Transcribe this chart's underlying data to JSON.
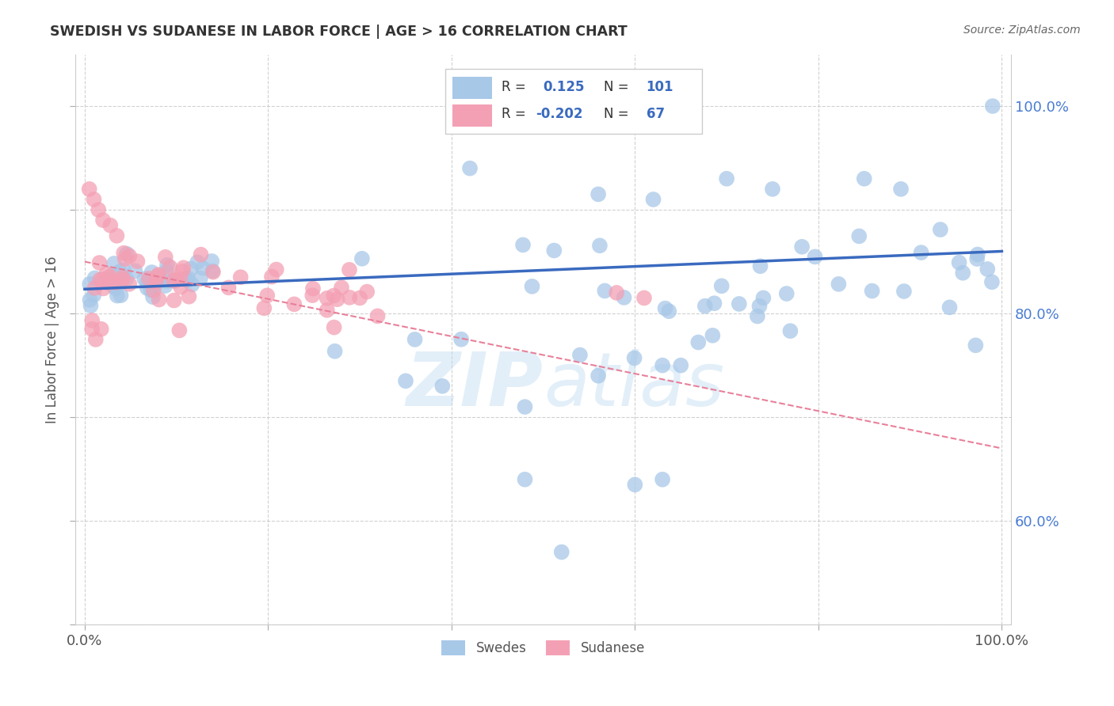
{
  "title": "SWEDISH VS SUDANESE IN LABOR FORCE | AGE > 16 CORRELATION CHART",
  "source": "Source: ZipAtlas.com",
  "ylabel": "In Labor Force | Age > 16",
  "watermark": "ZIPatlas",
  "swedish_R": 0.125,
  "swedish_N": 101,
  "sudanese_R": -0.202,
  "sudanese_N": 67,
  "swedish_color": "#a8c8e8",
  "sudanese_color": "#f4a0b4",
  "swedish_line_color": "#3a6abf",
  "sudanese_line_color": "#e8809a",
  "background_color": "#ffffff",
  "grid_color": "#cccccc",
  "right_tick_color": "#4a7cd4",
  "title_color": "#333333",
  "source_color": "#666666"
}
